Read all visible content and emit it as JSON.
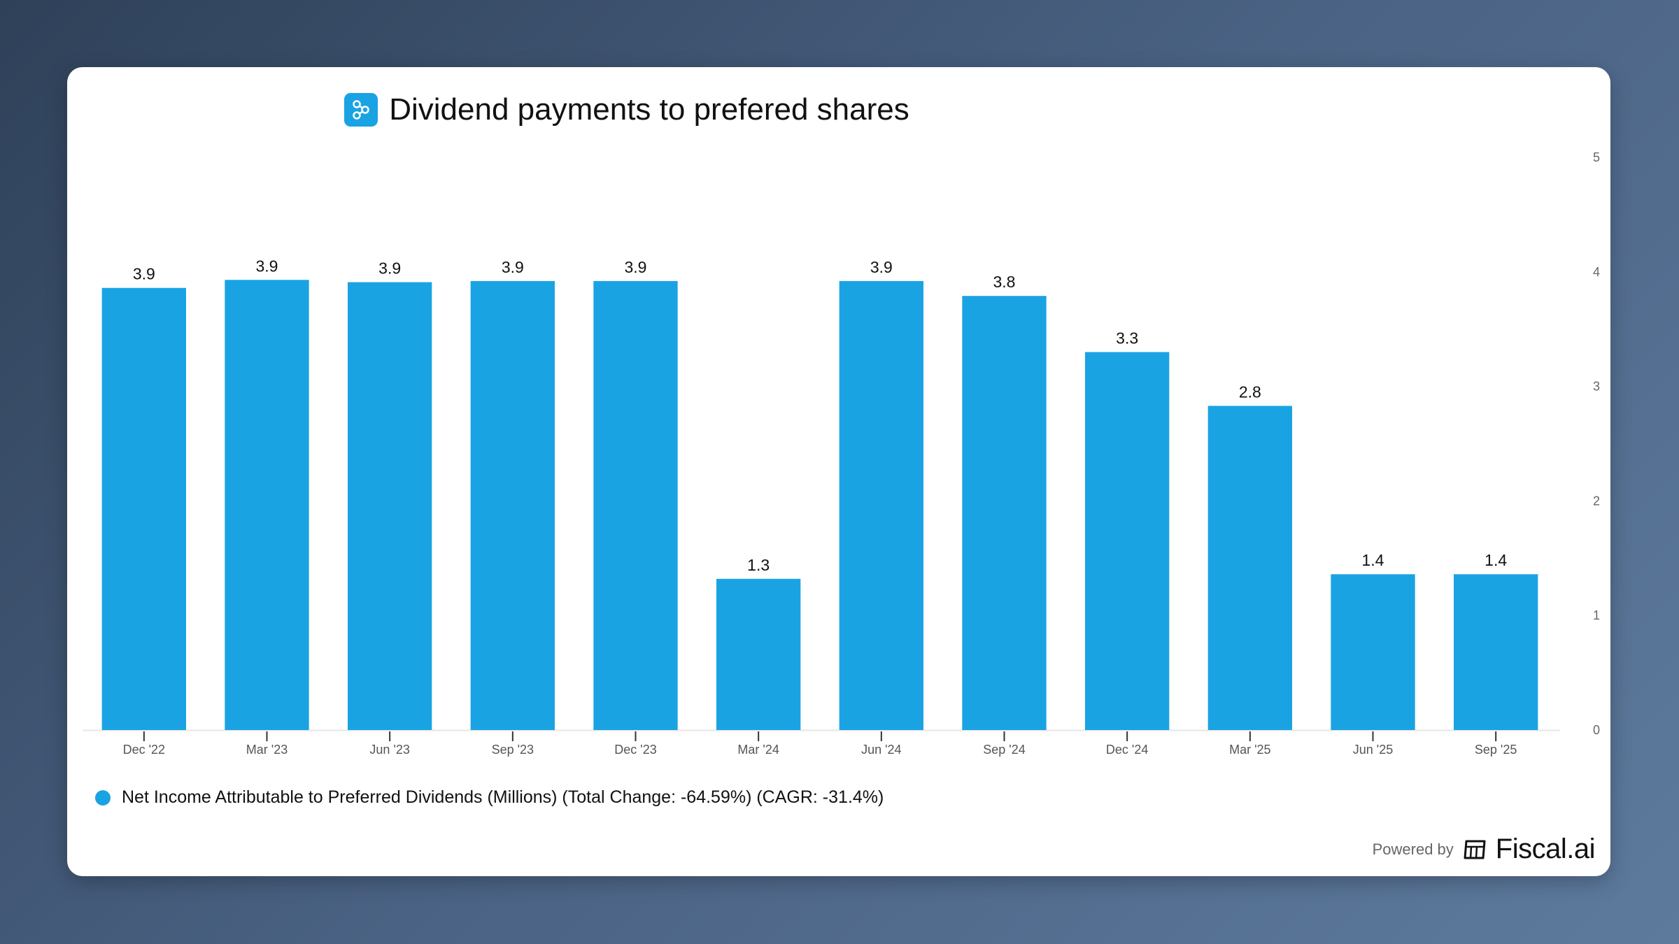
{
  "title": "Dividend payments to prefered shares",
  "legend": {
    "text": "Net Income Attributable to Preferred Dividends (Millions) (Total Change: -64.59%) (CAGR: -31.4%)"
  },
  "footer": {
    "powered_by": "Powered by",
    "brand": "Fiscal.ai"
  },
  "colors": {
    "bar": "#1aa3e3",
    "background": "#ffffff"
  },
  "icons": {
    "title": "share-nodes-icon",
    "brand": "fiscal-logo-icon"
  },
  "chart_data": {
    "type": "bar",
    "title": "Dividend payments to prefered shares",
    "categories": [
      "Dec '22",
      "Mar '23",
      "Jun '23",
      "Sep '23",
      "Dec '23",
      "Mar '24",
      "Jun '24",
      "Sep '24",
      "Dec '24",
      "Mar '25",
      "Jun '25",
      "Sep '25"
    ],
    "series": [
      {
        "name": "Net Income Attributable to Preferred Dividends (Millions)",
        "values": [
          3.86,
          3.93,
          3.91,
          3.92,
          3.92,
          1.32,
          3.92,
          3.79,
          3.3,
          2.83,
          1.36,
          1.36
        ],
        "labels": [
          "3.9",
          "3.9",
          "3.9",
          "3.9",
          "3.9",
          "1.3",
          "3.9",
          "3.8",
          "3.3",
          "2.8",
          "1.4",
          "1.4"
        ]
      }
    ],
    "ylim": [
      0,
      5
    ],
    "yticks": [
      0,
      1,
      2,
      3,
      4,
      5
    ],
    "y_axis_side": "right",
    "grid": false,
    "legend_position": "bottom-left"
  }
}
